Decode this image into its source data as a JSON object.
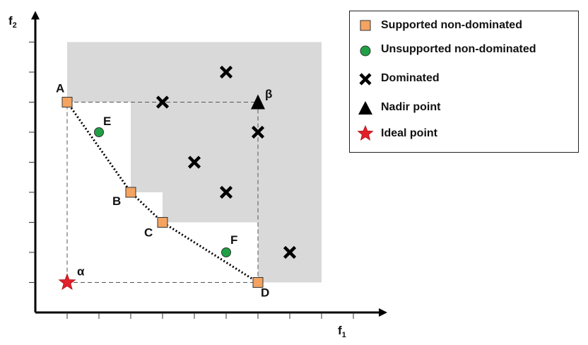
{
  "axes": {
    "x_label": "f",
    "x_sub": "1",
    "y_label": "f",
    "y_sub": "2"
  },
  "chart_data": {
    "type": "scatter",
    "xlim": [
      0,
      10
    ],
    "ylim": [
      0,
      9
    ],
    "xticks": [
      1,
      2,
      3,
      4,
      5,
      6,
      7,
      8,
      9,
      10
    ],
    "yticks": [
      1,
      2,
      3,
      4,
      5,
      6,
      7,
      8,
      9
    ],
    "series": [
      {
        "name": "Supported non-dominated",
        "points": [
          {
            "label": "A",
            "x": 1,
            "y": 7
          },
          {
            "label": "B",
            "x": 3,
            "y": 4
          },
          {
            "label": "C",
            "x": 4,
            "y": 3
          },
          {
            "label": "D",
            "x": 7,
            "y": 1
          }
        ]
      },
      {
        "name": "Unsupported non-dominated",
        "points": [
          {
            "label": "E",
            "x": 2,
            "y": 6
          },
          {
            "label": "F",
            "x": 6,
            "y": 2
          }
        ]
      },
      {
        "name": "Dominated",
        "points": [
          {
            "x": 6,
            "y": 8
          },
          {
            "x": 4,
            "y": 7
          },
          {
            "x": 7,
            "y": 6
          },
          {
            "x": 5,
            "y": 5
          },
          {
            "x": 6,
            "y": 4
          },
          {
            "x": 8,
            "y": 2
          }
        ]
      },
      {
        "name": "Nadir point",
        "points": [
          {
            "label": "β",
            "x": 7,
            "y": 7
          }
        ]
      },
      {
        "name": "Ideal point",
        "points": [
          {
            "label": "α",
            "x": 1,
            "y": 1
          }
        ]
      }
    ],
    "dominated_region": [
      [
        1,
        9
      ],
      [
        9,
        9
      ],
      [
        9,
        1
      ],
      [
        7,
        1
      ],
      [
        7,
        3
      ],
      [
        4,
        3
      ],
      [
        4,
        4
      ],
      [
        3,
        4
      ],
      [
        3,
        7
      ],
      [
        1,
        7
      ]
    ],
    "box": {
      "x_range": [
        1,
        7
      ],
      "y_range": [
        1,
        7
      ]
    },
    "supported_front": [
      [
        1,
        7
      ],
      [
        3,
        4
      ],
      [
        4,
        3
      ],
      [
        7,
        1
      ]
    ]
  },
  "legend": {
    "items": [
      {
        "label": "Supported non-dominated",
        "icon": "orange-square-icon"
      },
      {
        "label": "Unsupported non-dominated",
        "icon": "green-circle-icon"
      },
      {
        "label": "Dominated",
        "icon": "cross-icon"
      },
      {
        "label": "Nadir point",
        "icon": "triangle-icon"
      },
      {
        "label": "Ideal point",
        "icon": "star-icon"
      }
    ]
  },
  "colors": {
    "supported": "#f4a460",
    "unsupported": "#1fa045",
    "dominated": "#000000",
    "nadir": "#000000",
    "ideal": "#e0202a",
    "region": "#d9d9d9"
  }
}
